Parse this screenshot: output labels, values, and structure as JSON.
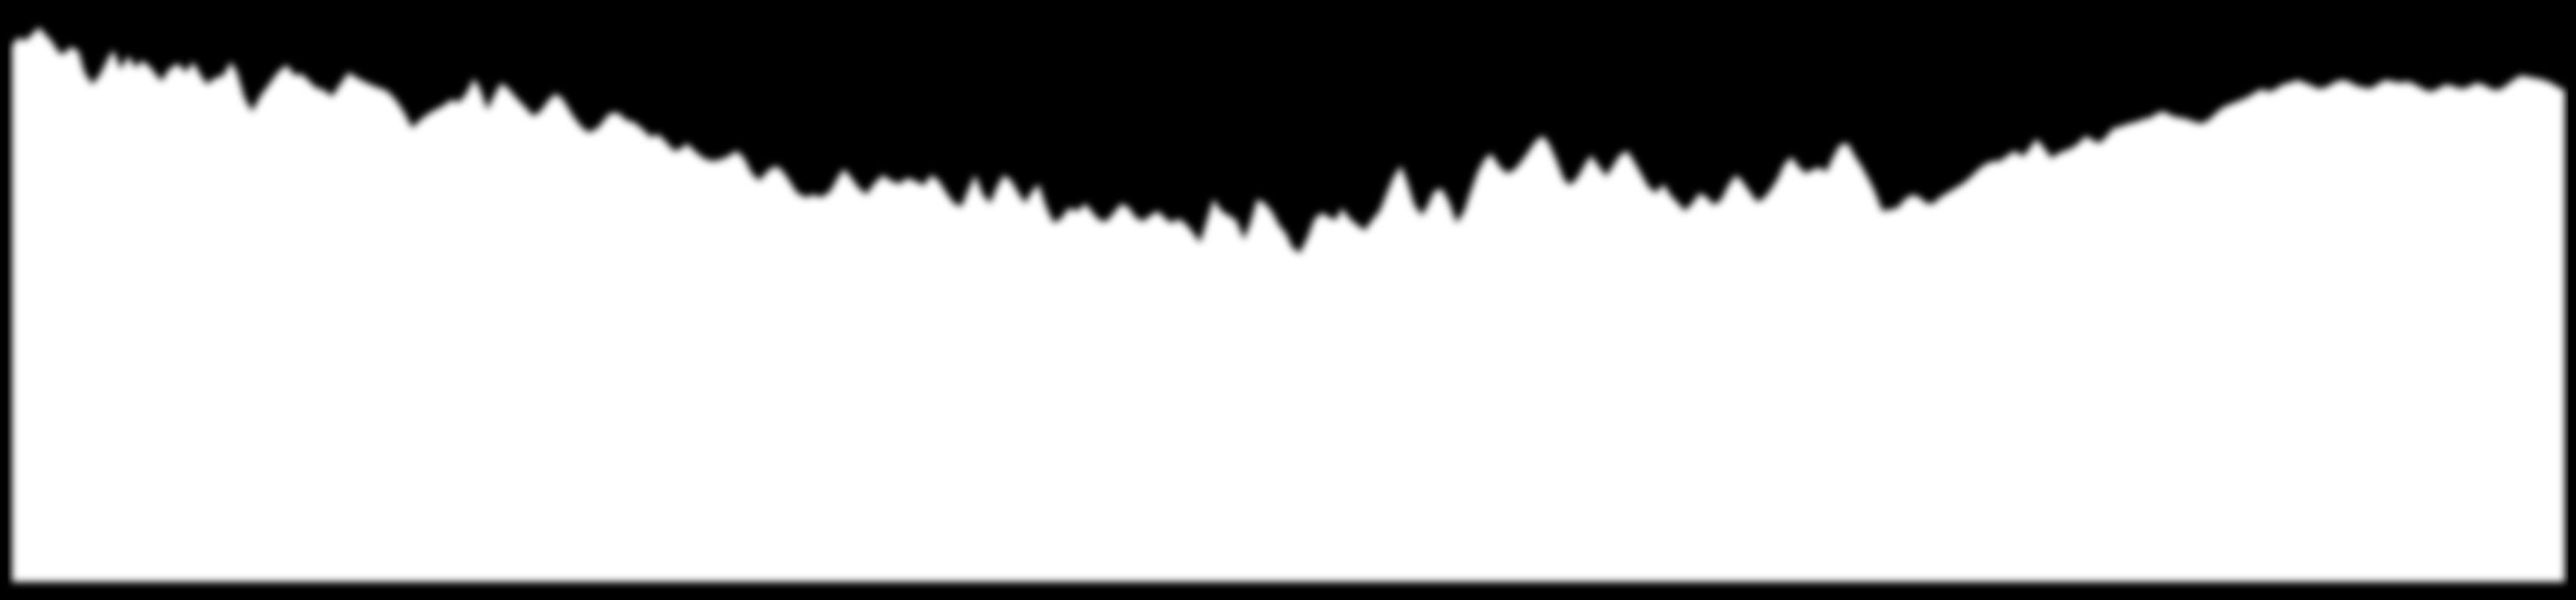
{
  "image": {
    "description_kind": "mask",
    "background_color": "#000000",
    "fill_color": "#ffffff",
    "blur_softness": "soft-edges"
  }
}
